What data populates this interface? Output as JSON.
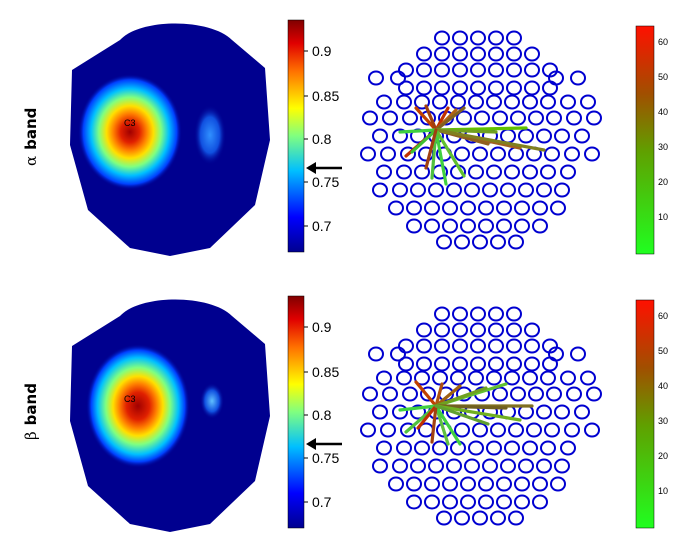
{
  "rows": [
    {
      "greek": "α",
      "label": "band",
      "head_map": {
        "electrode_label": "C3",
        "colorbar_ticks": [
          "0.9",
          "0.85",
          "0.8",
          "0.75",
          "0.7"
        ],
        "arrow_level": 0.763
      },
      "network": {
        "colorbar_ticks": [
          "60",
          "50",
          "40",
          "30",
          "20",
          "10"
        ],
        "colorbar_max": 66,
        "hub": "C3"
      }
    },
    {
      "greek": "β",
      "label": "band",
      "head_map": {
        "electrode_label": "C3",
        "colorbar_ticks": [
          "0.9",
          "0.85",
          "0.8",
          "0.75",
          "0.7"
        ],
        "arrow_level": 0.763
      },
      "network": {
        "colorbar_ticks": [
          "60",
          "50",
          "40",
          "30",
          "20",
          "10"
        ],
        "colorbar_max": 66,
        "hub": "C3"
      }
    }
  ],
  "colors": {
    "electrode": "#0000d0",
    "head_background": "#00008f",
    "link_high": "#c02000",
    "link_low": "#30e030"
  }
}
